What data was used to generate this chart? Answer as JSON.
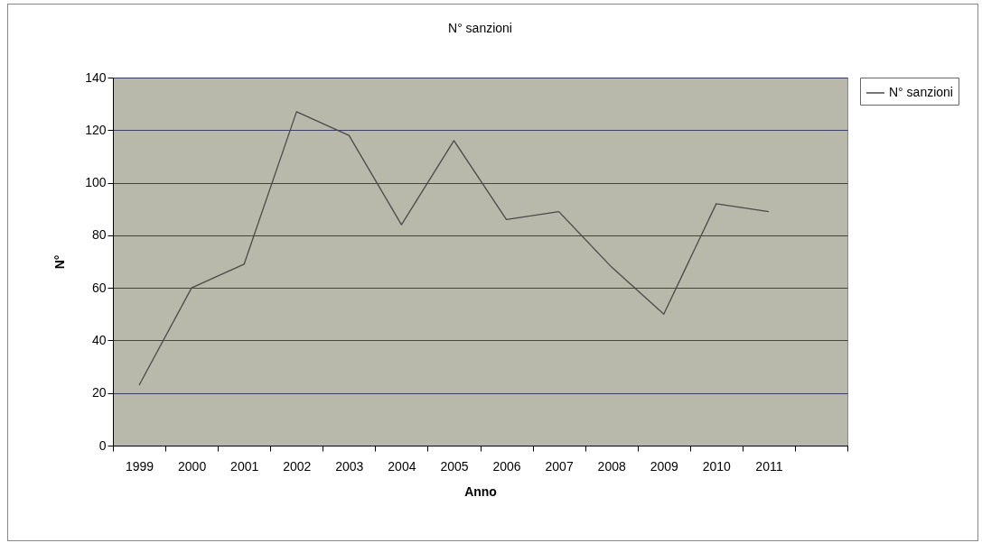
{
  "chart_data": {
    "type": "line",
    "title": "N° sanzioni",
    "xlabel": "Anno",
    "ylabel": "N°",
    "categories": [
      "1999",
      "2000",
      "2001",
      "2002",
      "2003",
      "2004",
      "2005",
      "2006",
      "2007",
      "2008",
      "2009",
      "2010",
      "2011",
      null
    ],
    "series": [
      {
        "name": "N° sanzioni",
        "color": "#4a4a4a",
        "values": [
          23,
          60,
          69,
          127,
          118,
          84,
          116,
          86,
          89,
          68,
          50,
          92,
          89,
          null
        ]
      }
    ],
    "ylim": [
      0,
      140
    ],
    "yticks": [
      0,
      20,
      40,
      60,
      80,
      100,
      120,
      140
    ],
    "grid": "y",
    "legend": "right",
    "marker": "none",
    "line_style": "solid"
  }
}
